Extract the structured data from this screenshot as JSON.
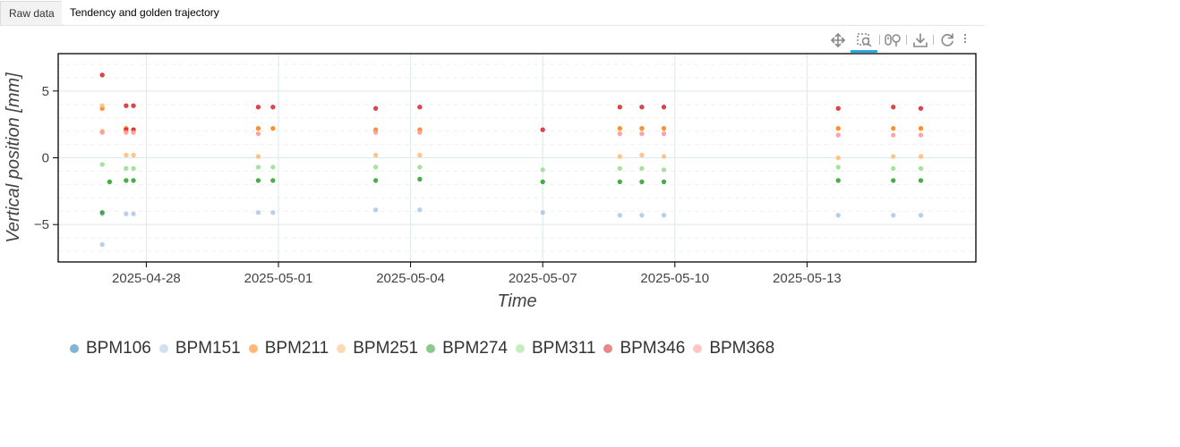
{
  "tabs": [
    {
      "label": "Raw data",
      "active": false
    },
    {
      "label": "Tendency and golden trajectory",
      "active": true
    }
  ],
  "toolbar": {
    "tools": [
      "pan-icon",
      "box-zoom-icon",
      "wheel-zoom-icon",
      "save-icon",
      "reset-icon",
      "menu-icon"
    ],
    "active_tool": "box-zoom-icon"
  },
  "chart_data": {
    "type": "scatter",
    "title": "",
    "xlabel": "Time",
    "ylabel": "Vertical position [mm]",
    "x_ticks": [
      "2025-04-28",
      "2025-05-01",
      "2025-05-04",
      "2025-05-07",
      "2025-05-10",
      "2025-05-13"
    ],
    "y_ticks": [
      5,
      0,
      -5
    ],
    "xlim": [
      "2025-04-26T00:00",
      "2025-05-16T20:00"
    ],
    "ylim": [
      -7.8,
      7.8
    ],
    "grid": true,
    "legend_position": "bottom",
    "series": [
      {
        "name": "BPM106",
        "color": "#1f77b4",
        "points": []
      },
      {
        "name": "BPM151",
        "color": "#aec7e8",
        "points": [
          [
            "2025-04-27T00:00",
            -6.5
          ],
          [
            "2025-04-27T00:00",
            -4.2
          ],
          [
            "2025-04-27T13:00",
            -4.2
          ],
          [
            "2025-04-27T17:00",
            -4.2
          ],
          [
            "2025-04-30T13:00",
            -4.1
          ],
          [
            "2025-04-30T21:00",
            -4.1
          ],
          [
            "2025-05-03T05:00",
            -3.9
          ],
          [
            "2025-05-04T05:00",
            -3.9
          ],
          [
            "2025-05-07T00:00",
            -4.1
          ],
          [
            "2025-05-08T18:00",
            -4.3
          ],
          [
            "2025-05-09T06:00",
            -4.3
          ],
          [
            "2025-05-09T18:00",
            -4.3
          ],
          [
            "2025-05-13T17:00",
            -4.3
          ],
          [
            "2025-05-14T23:00",
            -4.3
          ],
          [
            "2025-05-15T14:00",
            -4.3
          ]
        ]
      },
      {
        "name": "BPM211",
        "color": "#ff7f0e",
        "points": [
          [
            "2025-04-27T00:00",
            3.7
          ],
          [
            "2025-04-27T13:00",
            2.2
          ],
          [
            "2025-04-27T17:00",
            2.1
          ],
          [
            "2025-04-30T13:00",
            2.2
          ],
          [
            "2025-04-30T21:00",
            2.2
          ],
          [
            "2025-05-03T05:00",
            2.1
          ],
          [
            "2025-05-04T05:00",
            2.1
          ],
          [
            "2025-05-08T18:00",
            2.2
          ],
          [
            "2025-05-09T06:00",
            2.2
          ],
          [
            "2025-05-09T18:00",
            2.2
          ],
          [
            "2025-05-13T17:00",
            2.2
          ],
          [
            "2025-05-14T23:00",
            2.2
          ],
          [
            "2025-05-15T14:00",
            2.2
          ]
        ]
      },
      {
        "name": "BPM251",
        "color": "#ffbb78",
        "points": [
          [
            "2025-04-27T00:00",
            3.9
          ],
          [
            "2025-04-27T00:00",
            2.0
          ],
          [
            "2025-04-27T13:00",
            0.2
          ],
          [
            "2025-04-27T17:00",
            0.2
          ],
          [
            "2025-04-30T13:00",
            0.1
          ],
          [
            "2025-05-03T05:00",
            0.2
          ],
          [
            "2025-05-04T05:00",
            0.2
          ],
          [
            "2025-05-08T18:00",
            0.1
          ],
          [
            "2025-05-09T06:00",
            0.2
          ],
          [
            "2025-05-09T18:00",
            0.1
          ],
          [
            "2025-05-13T17:00",
            0.0
          ],
          [
            "2025-05-14T23:00",
            0.1
          ],
          [
            "2025-05-15T14:00",
            0.1
          ]
        ]
      },
      {
        "name": "BPM274",
        "color": "#2ca02c",
        "points": [
          [
            "2025-04-27T00:00",
            -4.1
          ],
          [
            "2025-04-27T04:00",
            -1.8
          ],
          [
            "2025-04-27T13:00",
            -1.7
          ],
          [
            "2025-04-27T17:00",
            -1.7
          ],
          [
            "2025-04-30T13:00",
            -1.7
          ],
          [
            "2025-04-30T21:00",
            -1.7
          ],
          [
            "2025-05-03T05:00",
            -1.7
          ],
          [
            "2025-05-04T05:00",
            -1.6
          ],
          [
            "2025-05-07T00:00",
            -1.8
          ],
          [
            "2025-05-08T18:00",
            -1.8
          ],
          [
            "2025-05-09T06:00",
            -1.8
          ],
          [
            "2025-05-09T18:00",
            -1.8
          ],
          [
            "2025-05-13T17:00",
            -1.7
          ],
          [
            "2025-05-14T23:00",
            -1.7
          ],
          [
            "2025-05-15T14:00",
            -1.7
          ]
        ]
      },
      {
        "name": "BPM311",
        "color": "#98df8a",
        "points": [
          [
            "2025-04-27T00:00",
            -0.5
          ],
          [
            "2025-04-27T13:00",
            -0.8
          ],
          [
            "2025-04-27T17:00",
            -0.8
          ],
          [
            "2025-04-30T13:00",
            -0.7
          ],
          [
            "2025-04-30T21:00",
            -0.7
          ],
          [
            "2025-05-03T05:00",
            -0.7
          ],
          [
            "2025-05-04T05:00",
            -0.7
          ],
          [
            "2025-05-07T00:00",
            -0.9
          ],
          [
            "2025-05-08T18:00",
            -0.8
          ],
          [
            "2025-05-09T06:00",
            -0.8
          ],
          [
            "2025-05-09T18:00",
            -0.9
          ],
          [
            "2025-05-13T17:00",
            -0.7
          ],
          [
            "2025-05-14T23:00",
            -0.8
          ],
          [
            "2025-05-15T14:00",
            -0.8
          ]
        ]
      },
      {
        "name": "BPM346",
        "color": "#d62728",
        "points": [
          [
            "2025-04-27T00:00",
            6.2
          ],
          [
            "2025-04-27T13:00",
            3.9
          ],
          [
            "2025-04-27T13:00",
            2.1
          ],
          [
            "2025-04-27T17:00",
            3.9
          ],
          [
            "2025-04-27T17:00",
            2.1
          ],
          [
            "2025-04-30T13:00",
            3.8
          ],
          [
            "2025-04-30T21:00",
            3.8
          ],
          [
            "2025-05-03T05:00",
            3.7
          ],
          [
            "2025-05-04T05:00",
            3.8
          ],
          [
            "2025-05-07T00:00",
            2.1
          ],
          [
            "2025-05-08T18:00",
            3.8
          ],
          [
            "2025-05-09T06:00",
            3.8
          ],
          [
            "2025-05-09T18:00",
            3.8
          ],
          [
            "2025-05-13T17:00",
            3.7
          ],
          [
            "2025-05-14T23:00",
            3.8
          ],
          [
            "2025-05-15T14:00",
            3.7
          ]
        ]
      },
      {
        "name": "BPM368",
        "color": "#ff9896",
        "points": [
          [
            "2025-04-27T00:00",
            1.9
          ],
          [
            "2025-04-27T13:00",
            1.9
          ],
          [
            "2025-04-27T17:00",
            1.9
          ],
          [
            "2025-04-30T13:00",
            1.8
          ],
          [
            "2025-05-03T05:00",
            1.9
          ],
          [
            "2025-05-04T05:00",
            1.9
          ],
          [
            "2025-05-08T18:00",
            1.8
          ],
          [
            "2025-05-09T06:00",
            1.8
          ],
          [
            "2025-05-09T18:00",
            1.8
          ],
          [
            "2025-05-13T17:00",
            1.7
          ],
          [
            "2025-05-14T23:00",
            1.7
          ],
          [
            "2025-05-15T14:00",
            1.7
          ]
        ]
      }
    ]
  },
  "legend": {
    "items": [
      {
        "label": "BPM106",
        "color": "#1f77b4"
      },
      {
        "label": "BPM151",
        "color": "#aec7e8"
      },
      {
        "label": "BPM211",
        "color": "#ff7f0e"
      },
      {
        "label": "BPM251",
        "color": "#ffbb78"
      },
      {
        "label": "BPM274",
        "color": "#2ca02c"
      },
      {
        "label": "BPM311",
        "color": "#98df8a"
      },
      {
        "label": "BPM346",
        "color": "#d62728"
      },
      {
        "label": "BPM368",
        "color": "#ff9896"
      }
    ]
  }
}
